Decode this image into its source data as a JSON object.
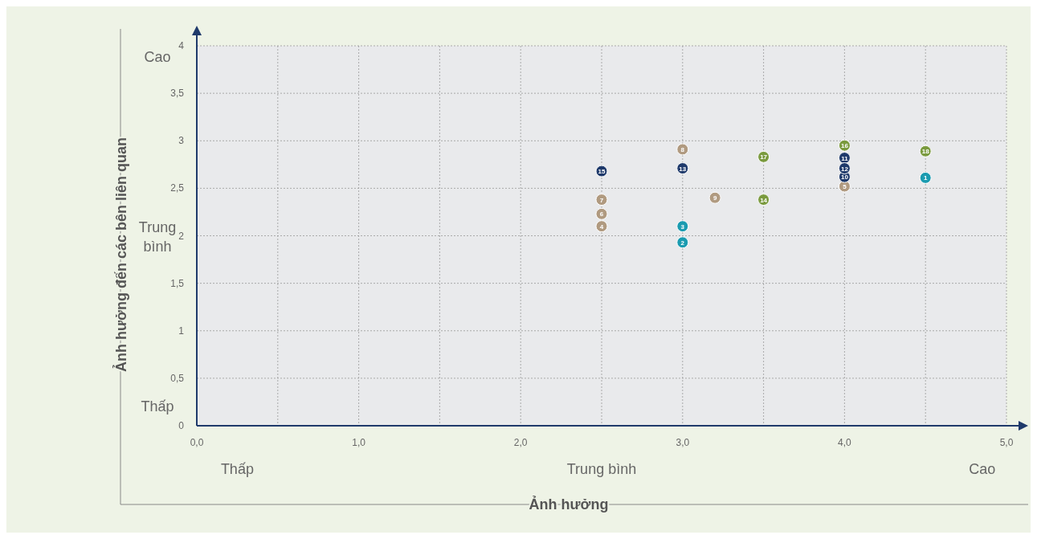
{
  "chart_data": {
    "type": "scatter",
    "xlabel": "Ảnh hưởng",
    "ylabel": "Ảnh hưởng đến các bên liên quan",
    "xlim": [
      0,
      5
    ],
    "ylim": [
      0,
      4
    ],
    "xticks": [
      {
        "value": 0,
        "label": "0,0"
      },
      {
        "value": 0.5,
        "label": null
      },
      {
        "value": 1,
        "label": "1,0"
      },
      {
        "value": 1.5,
        "label": null
      },
      {
        "value": 2,
        "label": "2,0"
      },
      {
        "value": 2.5,
        "label": null
      },
      {
        "value": 3,
        "label": "3,0"
      },
      {
        "value": 3.5,
        "label": null
      },
      {
        "value": 4,
        "label": "4,0"
      },
      {
        "value": 4.5,
        "label": null
      },
      {
        "value": 5,
        "label": "5,0"
      }
    ],
    "yticks": [
      0,
      {
        "value": 0.5,
        "label": "0,5"
      },
      1,
      {
        "value": 1.5,
        "label": "1,5"
      },
      2,
      {
        "value": 2.5,
        "label": "2,5"
      },
      3,
      {
        "value": 3.5,
        "label": "3,5"
      },
      4
    ],
    "grid": true,
    "marker": "circle",
    "annotations": [
      "Thấp",
      "Trung bình",
      "Cao",
      "Thấp",
      "Trung bình",
      "Cao"
    ],
    "series": [
      {
        "name": "1",
        "color": "#1a9bb0",
        "x": [
          4.5
        ],
        "values": [
          2.61
        ]
      },
      {
        "name": "2",
        "color": "#1a9bb0",
        "x": [
          3.0
        ],
        "values": [
          1.93
        ]
      },
      {
        "name": "3",
        "color": "#1a9bb0",
        "x": [
          3.0
        ],
        "values": [
          2.1
        ]
      },
      {
        "name": "4",
        "color": "#b09a80",
        "x": [
          2.5
        ],
        "values": [
          2.1
        ]
      },
      {
        "name": "5",
        "color": "#b09a80",
        "x": [
          4.0
        ],
        "values": [
          2.52
        ]
      },
      {
        "name": "6",
        "color": "#b09a80",
        "x": [
          2.5
        ],
        "values": [
          2.23
        ]
      },
      {
        "name": "7",
        "color": "#b09a80",
        "x": [
          2.5
        ],
        "values": [
          2.38
        ]
      },
      {
        "name": "8",
        "color": "#b09a80",
        "x": [
          3.0
        ],
        "values": [
          2.91
        ]
      },
      {
        "name": "9",
        "color": "#b09a80",
        "x": [
          3.2
        ],
        "values": [
          2.4
        ]
      },
      {
        "name": "10",
        "color": "#1f3a6b",
        "x": [
          4.0
        ],
        "values": [
          2.62
        ]
      },
      {
        "name": "11",
        "color": "#1f3a6b",
        "x": [
          4.0
        ],
        "values": [
          2.82
        ]
      },
      {
        "name": "12",
        "color": "#1f3a6b",
        "x": [
          4.0
        ],
        "values": [
          2.71
        ]
      },
      {
        "name": "13",
        "color": "#1f3a6b",
        "x": [
          3.0
        ],
        "values": [
          2.71
        ]
      },
      {
        "name": "14",
        "color": "#7a9a3e",
        "x": [
          3.5
        ],
        "values": [
          2.38
        ]
      },
      {
        "name": "15",
        "color": "#1f3a6b",
        "x": [
          2.5
        ],
        "values": [
          2.68
        ]
      },
      {
        "name": "16",
        "color": "#7a9a3e",
        "x": [
          4.0
        ],
        "values": [
          2.95
        ]
      },
      {
        "name": "17",
        "color": "#7a9a3e",
        "x": [
          3.5
        ],
        "values": [
          2.83
        ]
      },
      {
        "name": "18",
        "color": "#7a9a3e",
        "x": [
          4.5
        ],
        "values": [
          2.89
        ]
      }
    ]
  }
}
